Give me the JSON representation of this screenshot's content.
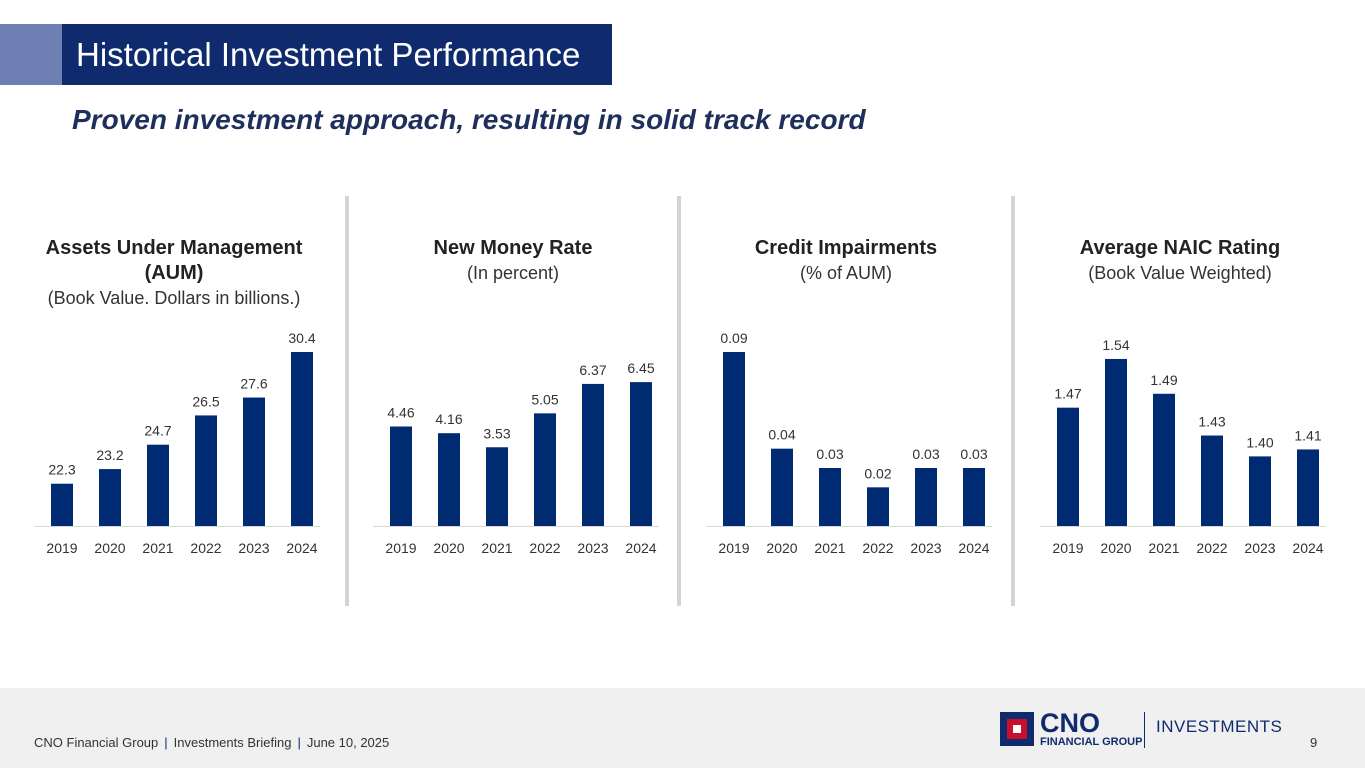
{
  "header": {
    "title": "Historical Investment Performance",
    "subtitle": "Proven investment approach, resulting in solid track record"
  },
  "colors": {
    "bar": "#002b73",
    "title_bg": "#0f2b6e",
    "accent": "#6d7fb3"
  },
  "panels": [
    {
      "title": "Assets Under Management (AUM)",
      "subtitle": "(Book Value. Dollars in billions.)"
    },
    {
      "title": "New Money Rate",
      "subtitle": "(In percent)"
    },
    {
      "title": "Credit Impairments",
      "subtitle": "(% of AUM)"
    },
    {
      "title": "Average NAIC Rating",
      "subtitle": "(Book Value Weighted)"
    }
  ],
  "chart_data": [
    {
      "type": "bar",
      "title": "Assets Under Management (AUM)",
      "subtitle": "(Book Value. Dollars in billions.)",
      "categories": [
        "2019",
        "2020",
        "2021",
        "2022",
        "2023",
        "2024"
      ],
      "values": [
        22.3,
        23.2,
        24.7,
        26.5,
        27.6,
        30.4
      ],
      "labels": [
        "22.3",
        "23.2",
        "24.7",
        "26.5",
        "27.6",
        "30.4"
      ],
      "ylim": [
        19.7,
        30.4
      ]
    },
    {
      "type": "bar",
      "title": "New Money Rate",
      "subtitle": "(In percent)",
      "categories": [
        "2019",
        "2020",
        "2021",
        "2022",
        "2023",
        "2024"
      ],
      "values": [
        4.46,
        4.16,
        3.53,
        5.05,
        6.37,
        6.45
      ],
      "labels": [
        "4.46",
        "4.16",
        "3.53",
        "5.05",
        "6.37",
        "6.45"
      ],
      "ylim": [
        0,
        7.8
      ]
    },
    {
      "type": "bar",
      "title": "Credit Impairments",
      "subtitle": "(% of AUM)",
      "categories": [
        "2019",
        "2020",
        "2021",
        "2022",
        "2023",
        "2024"
      ],
      "values": [
        0.09,
        0.04,
        0.03,
        0.02,
        0.03,
        0.03
      ],
      "labels": [
        "0.09",
        "0.04",
        "0.03",
        "0.02",
        "0.03",
        "0.03"
      ],
      "ylim": [
        0,
        0.09
      ]
    },
    {
      "type": "bar",
      "title": "Average NAIC Rating",
      "subtitle": "(Book Value Weighted)",
      "categories": [
        "2019",
        "2020",
        "2021",
        "2022",
        "2023",
        "2024"
      ],
      "values": [
        1.47,
        1.54,
        1.49,
        1.43,
        1.4,
        1.41
      ],
      "labels": [
        "1.47",
        "1.54",
        "1.49",
        "1.43",
        "1.40",
        "1.41"
      ],
      "ylim": [
        1.3,
        1.55
      ]
    }
  ],
  "footer": {
    "company": "CNO Financial Group",
    "separator": "|",
    "event": "Investments Briefing",
    "date": "June 10, 2025",
    "page": "9"
  },
  "logo": {
    "name": "CNO",
    "tagline": "FINANCIAL GROUP",
    "division": "INVESTMENTS"
  }
}
